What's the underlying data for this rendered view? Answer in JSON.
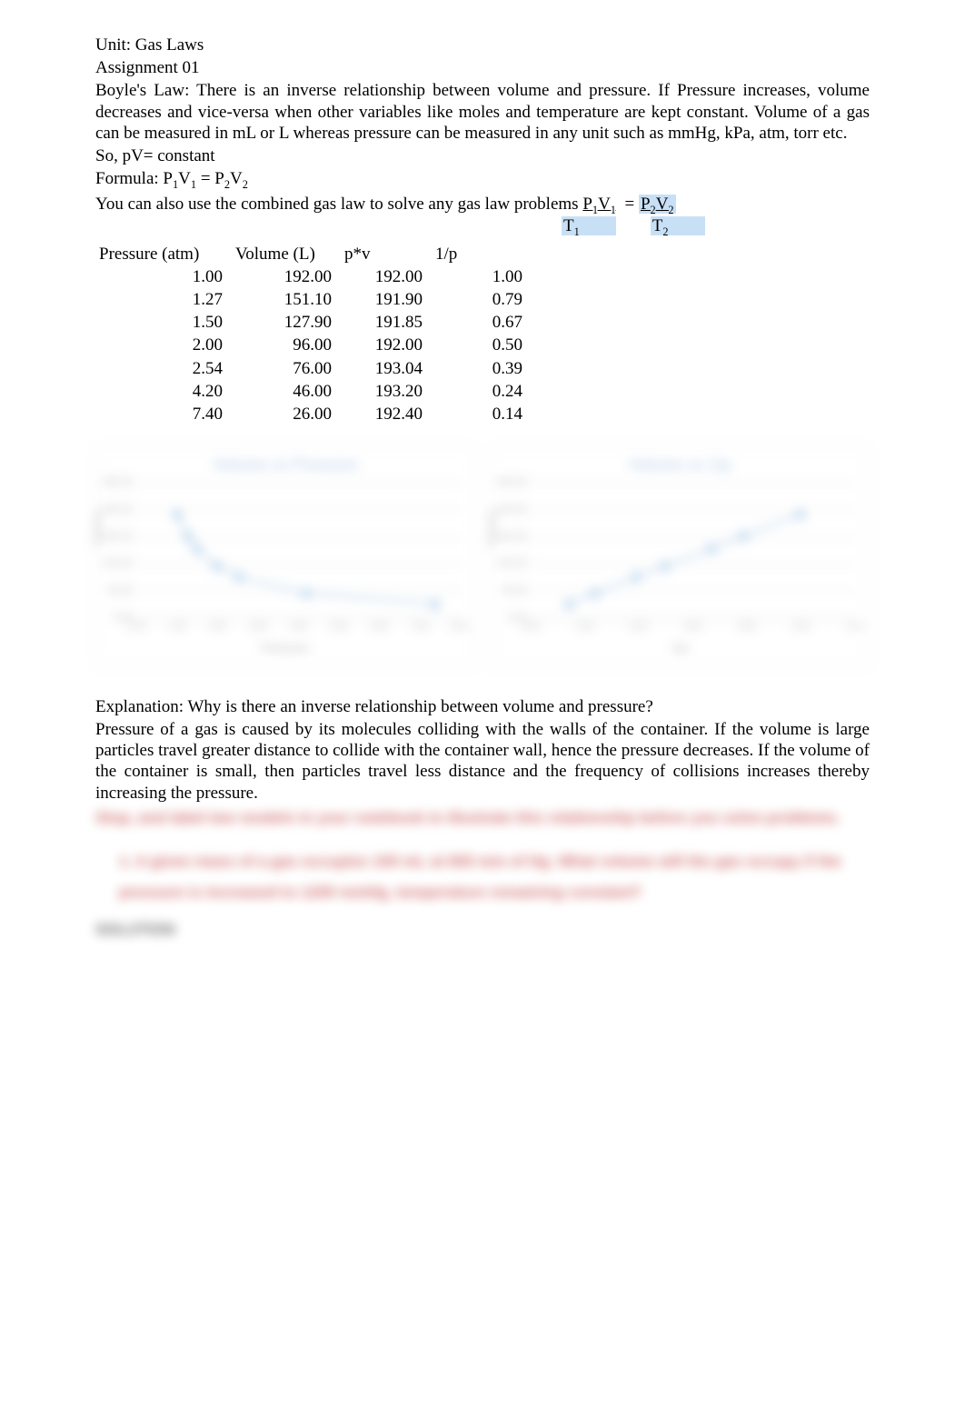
{
  "header": {
    "unit": "Unit: Gas Laws",
    "assignment": "Assignment 01"
  },
  "law": {
    "description": "Boyle's Law:  There is an inverse relationship between volume and pressure. If Pressure increases, volume decreases and vice-versa when other variables like moles and temperature are kept constant. Volume of a gas can be measured in mL or L whereas pressure can be measured in any unit such as mmHg, kPa, atm, torr etc.",
    "so_line": "So, pV= constant",
    "formula_prefix": "Formula: ",
    "formula_body": "P₁V₁ = P₂V₂",
    "combined_line_prefix": "You can also use the combined gas law to solve any gas law problems ",
    "combined_frac": "P₁V₁  = P₂V₂",
    "denom_t1": "T₁",
    "denom_t2": "T₂"
  },
  "table": {
    "columns": [
      "Pressure (atm)",
      "Volume (L)",
      "p*v",
      "1/p"
    ],
    "rows": [
      [
        "1.00",
        "192.00",
        "192.00",
        "1.00"
      ],
      [
        "1.27",
        "151.10",
        "191.90",
        "0.79"
      ],
      [
        "1.50",
        "127.90",
        "191.85",
        "0.67"
      ],
      [
        "2.00",
        "96.00",
        "192.00",
        "0.50"
      ],
      [
        "2.54",
        "76.00",
        "193.04",
        "0.39"
      ],
      [
        "4.20",
        "46.00",
        "193.20",
        "0.24"
      ],
      [
        "7.40",
        "26.00",
        "192.40",
        "0.14"
      ]
    ]
  },
  "charts": {
    "left": {
      "title": "Volume vs Pressure",
      "type": "scatter-line",
      "xlabel": "Pressure",
      "ylabel": "Volume",
      "xlim": [
        0,
        8
      ],
      "ylim": [
        0,
        250
      ],
      "ytick_step": 50,
      "xticks": [
        0,
        1,
        2,
        3,
        4,
        5,
        6,
        7,
        8
      ],
      "grid_color": "#bbbbbb",
      "background_color": "#ffffff",
      "marker_color": "#6fa8dc",
      "line_color": "#6fa8dc",
      "points": [
        {
          "x": 1.0,
          "y": 192.0
        },
        {
          "x": 1.27,
          "y": 151.1
        },
        {
          "x": 1.5,
          "y": 127.9
        },
        {
          "x": 2.0,
          "y": 96.0
        },
        {
          "x": 2.54,
          "y": 76.0
        },
        {
          "x": 4.2,
          "y": 46.0
        },
        {
          "x": 7.4,
          "y": 26.0
        }
      ]
    },
    "right": {
      "title": "Volume vs 1/p",
      "type": "scatter-line",
      "xlabel": "1/p",
      "ylabel": "Volume",
      "xlim": [
        0,
        1.2
      ],
      "ylim": [
        0,
        250
      ],
      "ytick_step": 50,
      "xticks": [
        0.0,
        0.2,
        0.4,
        0.6,
        0.8,
        1.0,
        1.2
      ],
      "grid_color": "#bbbbbb",
      "background_color": "#ffffff",
      "marker_color": "#6fa8dc",
      "line_color": "#6fa8dc",
      "points": [
        {
          "x": 0.14,
          "y": 26.0
        },
        {
          "x": 0.24,
          "y": 46.0
        },
        {
          "x": 0.39,
          "y": 76.0
        },
        {
          "x": 0.5,
          "y": 96.0
        },
        {
          "x": 0.67,
          "y": 127.9
        },
        {
          "x": 0.79,
          "y": 151.1
        },
        {
          "x": 1.0,
          "y": 192.0
        }
      ]
    }
  },
  "explanation": {
    "question": "Explanation: Why is there an inverse relationship between volume and pressure?",
    "answer": "Pressure of a gas is caused by its molecules colliding with the walls of the container. If the volume is large particles travel greater distance to collide with the container wall, hence the pressure decreases. If the volume of the container is small, then particles travel less distance and the frequency of collisions increases thereby increasing the pressure."
  },
  "blurred": {
    "redline": "Stop, and label two models in your notebook to illustrate this relationship before you solve problems.",
    "q1": "1.   A given mass of a gas occupies 100 mL at 600 mm of Hg. What volume will the gas occupy if the pressure is increased to 1200 mmHg, temperature remaining constant?",
    "solution_label": "SOLUTION"
  },
  "style": {
    "body_font": "Times New Roman",
    "body_fontsize_pt": 14,
    "chart_title_color": "#7ca6d8",
    "red_text_color": "#b00000",
    "highlight_bg": "#c8e0f6"
  }
}
